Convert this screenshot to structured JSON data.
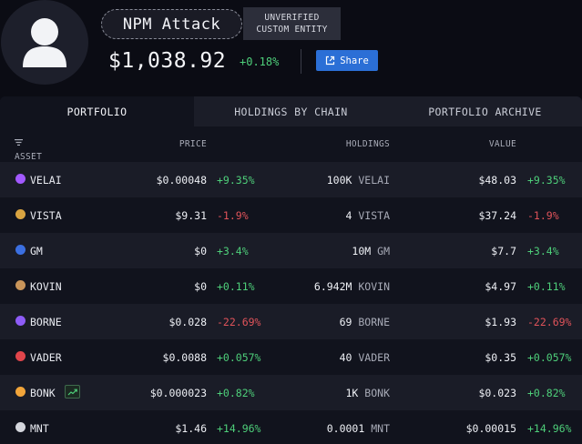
{
  "entity": {
    "name": "NPM Attack",
    "tag_line1": "UNVERIFIED",
    "tag_line2": "CUSTOM ENTITY",
    "balance": "$1,038.92",
    "balance_change": "+0.18%",
    "share_label": "Share"
  },
  "tabs": [
    {
      "label": "PORTFOLIO",
      "active": true
    },
    {
      "label": "HOLDINGS BY CHAIN",
      "active": false
    },
    {
      "label": "PORTFOLIO ARCHIVE",
      "active": false
    }
  ],
  "columns": {
    "asset": "ASSET",
    "price": "PRICE",
    "holdings": "HOLDINGS",
    "value": "VALUE"
  },
  "rows": [
    {
      "symbol": "VELAI",
      "icon": "velai-icon",
      "icon_color": "#a259ff",
      "price": "$0.00048",
      "price_change": "+9.35%",
      "holdings_amount": "100K",
      "holdings_symbol": "VELAI",
      "value": "$48.03",
      "value_change": "+9.35%",
      "direction": "pos"
    },
    {
      "symbol": "VISTA",
      "icon": "vista-icon",
      "icon_color": "#d9a441",
      "price": "$9.31",
      "price_change": "-1.9%",
      "holdings_amount": "4",
      "holdings_symbol": "VISTA",
      "value": "$37.24",
      "value_change": "-1.9%",
      "direction": "neg"
    },
    {
      "symbol": "GM",
      "icon": "gm-icon",
      "icon_color": "#3b6fe0",
      "price": "$0",
      "price_change": "+3.4%",
      "holdings_amount": "10M",
      "holdings_symbol": "GM",
      "value": "$7.7",
      "value_change": "+3.4%",
      "direction": "pos"
    },
    {
      "symbol": "KOVIN",
      "icon": "kovin-icon",
      "icon_color": "#c9955a",
      "price": "$0",
      "price_change": "+0.11%",
      "holdings_amount": "6.942M",
      "holdings_symbol": "KOVIN",
      "value": "$4.97",
      "value_change": "+0.11%",
      "direction": "pos"
    },
    {
      "symbol": "BORNE",
      "icon": "borne-icon",
      "icon_color": "#8e5cf7",
      "price": "$0.028",
      "price_change": "-22.69%",
      "holdings_amount": "69",
      "holdings_symbol": "BORNE",
      "value": "$1.93",
      "value_change": "-22.69%",
      "direction": "neg"
    },
    {
      "symbol": "VADER",
      "icon": "vader-icon",
      "icon_color": "#e0454b",
      "price": "$0.0088",
      "price_change": "+0.057%",
      "holdings_amount": "40",
      "holdings_symbol": "VADER",
      "value": "$0.35",
      "value_change": "+0.057%",
      "direction": "pos"
    },
    {
      "symbol": "BONK",
      "icon": "bonk-icon",
      "icon_color": "#f2a53a",
      "price": "$0.000023",
      "price_change": "+0.82%",
      "holdings_amount": "1K",
      "holdings_symbol": "BONK",
      "value": "$0.023",
      "value_change": "+0.82%",
      "direction": "pos",
      "trending": true
    },
    {
      "symbol": "MNT",
      "icon": "mnt-icon",
      "icon_color": "#d4d6dd",
      "price": "$1.46",
      "price_change": "+14.96%",
      "holdings_amount": "0.0001",
      "holdings_symbol": "MNT",
      "value": "$0.00015",
      "value_change": "+14.96%",
      "direction": "pos"
    }
  ]
}
